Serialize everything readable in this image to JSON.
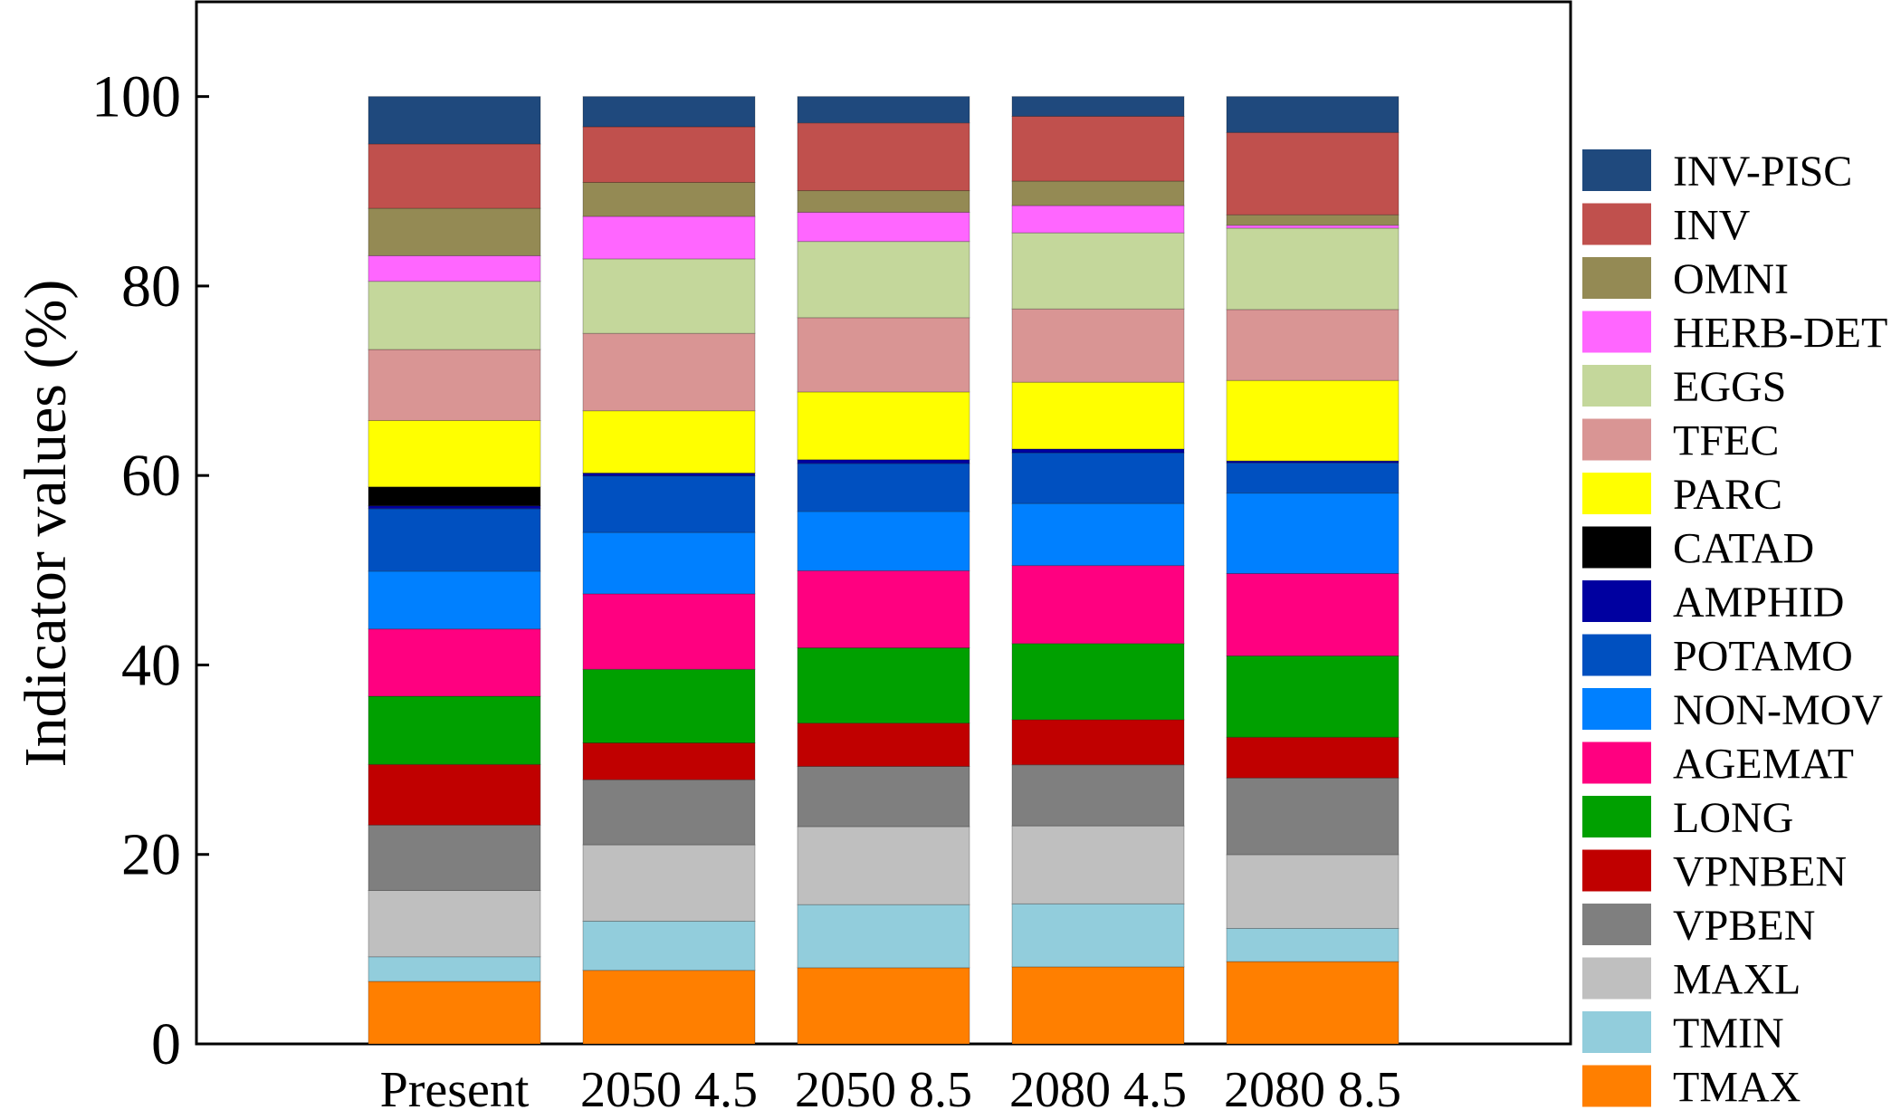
{
  "chart_data": {
    "type": "bar",
    "stacked": true,
    "title": "",
    "xlabel": "",
    "ylabel": "Indicator values (%)",
    "ylim": [
      0,
      110
    ],
    "yticks": [
      0,
      20,
      40,
      60,
      80,
      100
    ],
    "grid": false,
    "legend_position": "right",
    "categories": [
      "Present",
      "2050 4.5",
      "2050 8.5",
      "2080 4.5",
      "2080 8.5"
    ],
    "series": [
      {
        "name": "TMAX",
        "color": "#FF7F00",
        "values": [
          6.6,
          7.8,
          8.1,
          8.2,
          8.7
        ]
      },
      {
        "name": "TMIN",
        "color": "#92CDDC",
        "values": [
          2.6,
          5.2,
          6.7,
          6.7,
          3.5
        ]
      },
      {
        "name": "MAXL",
        "color": "#BFBFBF",
        "values": [
          7.0,
          8.1,
          8.3,
          8.3,
          7.8
        ]
      },
      {
        "name": "VPBEN",
        "color": "#7F7F7F",
        "values": [
          6.9,
          6.9,
          6.4,
          6.5,
          8.1
        ]
      },
      {
        "name": "VPNBEN",
        "color": "#C00000",
        "values": [
          6.4,
          3.9,
          4.6,
          4.8,
          4.3
        ]
      },
      {
        "name": "LONG",
        "color": "#00A000",
        "values": [
          7.2,
          7.8,
          8.0,
          8.1,
          8.6
        ]
      },
      {
        "name": "AGEMAT",
        "color": "#FF0080",
        "values": [
          7.1,
          8.0,
          8.2,
          8.3,
          8.7
        ]
      },
      {
        "name": "NON-MOV",
        "color": "#0080FF",
        "values": [
          6.1,
          6.5,
          6.3,
          6.6,
          8.5
        ]
      },
      {
        "name": "POTAMO",
        "color": "#0050C0",
        "values": [
          6.6,
          6.0,
          5.1,
          5.4,
          3.2
        ]
      },
      {
        "name": "AMPHID",
        "color": "#0000A0",
        "values": [
          0.3,
          0.3,
          0.4,
          0.4,
          0.2
        ]
      },
      {
        "name": "CATAD",
        "color": "#000000",
        "values": [
          2.0,
          0.0,
          0.0,
          0.0,
          0.0
        ]
      },
      {
        "name": "PARC",
        "color": "#FFFF00",
        "values": [
          7.0,
          6.6,
          7.2,
          7.1,
          8.5
        ]
      },
      {
        "name": "TFEC",
        "color": "#D99594",
        "values": [
          7.5,
          8.2,
          7.9,
          7.8,
          7.5
        ]
      },
      {
        "name": "EGGS",
        "color": "#C4D79B",
        "values": [
          7.2,
          7.9,
          8.1,
          8.1,
          8.6
        ]
      },
      {
        "name": "HERB-DET",
        "color": "#FF66FF",
        "values": [
          2.7,
          4.5,
          3.1,
          2.9,
          0.3
        ]
      },
      {
        "name": "OMNI",
        "color": "#948A54",
        "values": [
          5.0,
          3.6,
          2.3,
          2.6,
          1.1
        ]
      },
      {
        "name": "INV",
        "color": "#C0504D",
        "values": [
          6.8,
          5.9,
          7.2,
          6.9,
          8.7
        ]
      },
      {
        "name": "INV-PISC",
        "color": "#1F497D",
        "values": [
          5.0,
          3.2,
          2.8,
          2.1,
          3.8
        ]
      }
    ]
  }
}
